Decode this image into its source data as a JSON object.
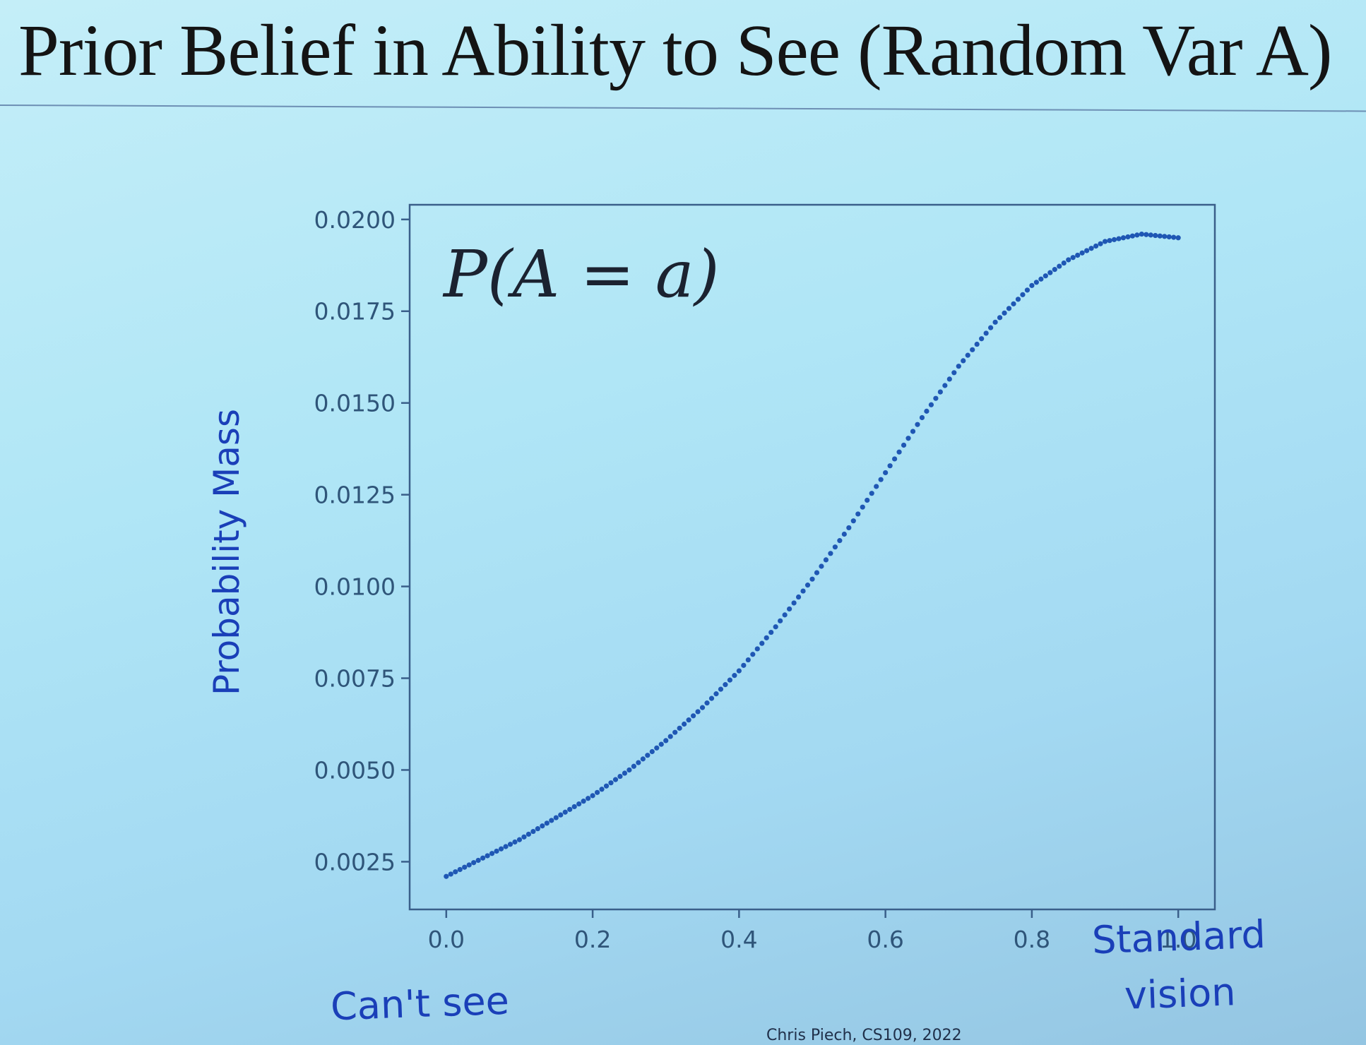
{
  "slide": {
    "title": "Prior Belief in Ability to See (Random Var A)",
    "footer": "Chris Piech, CS109, 2022"
  },
  "colors": {
    "series": "#1f57b4",
    "annotation": "#1a3fb8",
    "axis": "#3a5f8a",
    "tick_text": "#2f5579"
  },
  "annotations": {
    "inset": "P(A = a)",
    "left_end": "Can't see",
    "right_end_line1": "Standard",
    "right_end_line2": "vision"
  },
  "chart_data": {
    "type": "scatter",
    "title": "",
    "xlabel": "",
    "ylabel": "Probability Mass",
    "xlim": [
      -0.05,
      1.05
    ],
    "ylim": [
      0.0012,
      0.0204
    ],
    "xticks": [
      0.0,
      0.2,
      0.4,
      0.6,
      0.8,
      1.0
    ],
    "xtick_labels": [
      "0.0",
      "0.2",
      "0.4",
      "0.6",
      "0.8",
      "1.0"
    ],
    "yticks": [
      0.0025,
      0.005,
      0.0075,
      0.01,
      0.0125,
      0.015,
      0.0175,
      0.02
    ],
    "ytick_labels": [
      "0.0025",
      "0.0050",
      "0.0075",
      "0.0100",
      "0.0125",
      "0.0150",
      "0.0175",
      "0.0200"
    ],
    "grid": false,
    "series": [
      {
        "x": [
          0,
          0.05,
          0.1,
          0.15,
          0.2,
          0.25,
          0.3,
          0.35,
          0.4,
          0.45,
          0.5,
          0.55,
          0.6,
          0.65,
          0.7,
          0.75,
          0.8,
          0.85,
          0.9,
          0.95,
          1.0
        ],
        "y": [
          0.0021,
          0.0026,
          0.0031,
          0.0037,
          0.0043,
          0.005,
          0.0058,
          0.0067,
          0.0077,
          0.0089,
          0.0102,
          0.0116,
          0.0131,
          0.0146,
          0.016,
          0.0172,
          0.0182,
          0.0189,
          0.0194,
          0.0196,
          0.0195
        ]
      }
    ]
  }
}
